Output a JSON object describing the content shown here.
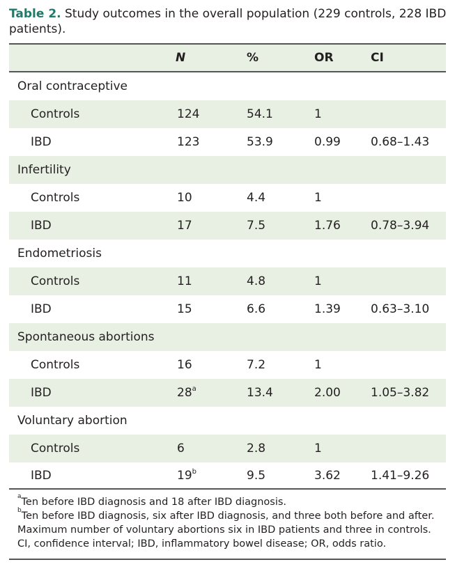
{
  "caption": {
    "label": "Table 2.",
    "text": " Study outcomes in the overall population (229 controls, 228 IBD patients)."
  },
  "header": [
    "",
    "N",
    "%",
    "OR",
    "CI"
  ],
  "rows": [
    {
      "kind": "group",
      "label": "Oral contraceptive"
    },
    {
      "kind": "data",
      "label": "Controls",
      "n": "124",
      "n_sup": "",
      "pct": "54.1",
      "or": "1",
      "ci": ""
    },
    {
      "kind": "data",
      "label": "IBD",
      "n": "123",
      "n_sup": "",
      "pct": "53.9",
      "or": "0.99",
      "ci": "0.68–1.43"
    },
    {
      "kind": "group",
      "label": "Infertility"
    },
    {
      "kind": "data",
      "label": "Controls",
      "n": "10",
      "n_sup": "",
      "pct": "4.4",
      "or": "1",
      "ci": ""
    },
    {
      "kind": "data",
      "label": "IBD",
      "n": "17",
      "n_sup": "",
      "pct": "7.5",
      "or": "1.76",
      "ci": "0.78–3.94"
    },
    {
      "kind": "group",
      "label": "Endometriosis"
    },
    {
      "kind": "data",
      "label": "Controls",
      "n": "11",
      "n_sup": "",
      "pct": "4.8",
      "or": "1",
      "ci": ""
    },
    {
      "kind": "data",
      "label": "IBD",
      "n": "15",
      "n_sup": "",
      "pct": "6.6",
      "or": "1.39",
      "ci": "0.63–3.10"
    },
    {
      "kind": "group",
      "label": "Spontaneous abortions"
    },
    {
      "kind": "data",
      "label": "Controls",
      "n": "16",
      "n_sup": "",
      "pct": "7.2",
      "or": "1",
      "ci": ""
    },
    {
      "kind": "data",
      "label": "IBD",
      "n": "28",
      "n_sup": "a",
      "pct": "13.4",
      "or": "2.00",
      "ci": "1.05–3.82"
    },
    {
      "kind": "group",
      "label": "Voluntary abortion"
    },
    {
      "kind": "data",
      "label": "Controls",
      "n": "6",
      "n_sup": "",
      "pct": "2.8",
      "or": "1",
      "ci": ""
    },
    {
      "kind": "data",
      "label": "IBD",
      "n": "19",
      "n_sup": "b",
      "pct": "9.5",
      "or": "3.62",
      "ci": "1.41–9.26"
    }
  ],
  "footnotes": [
    {
      "sup": "a",
      "text": "Ten before IBD diagnosis and 18 after IBD diagnosis."
    },
    {
      "sup": "b",
      "text": "Ten before IBD diagnosis, six after IBD diagnosis, and three both before and after."
    },
    {
      "sup": "",
      "text": "Maximum number of voluntary abortions six in IBD patients and three in controls."
    },
    {
      "sup": "",
      "text": "CI, confidence interval; IBD, inflammatory bowel disease; OR, odds ratio."
    }
  ],
  "colors": {
    "caption_label": "#1f7a6a",
    "row_shade": "#e8f0e4",
    "rule": "#555555"
  }
}
